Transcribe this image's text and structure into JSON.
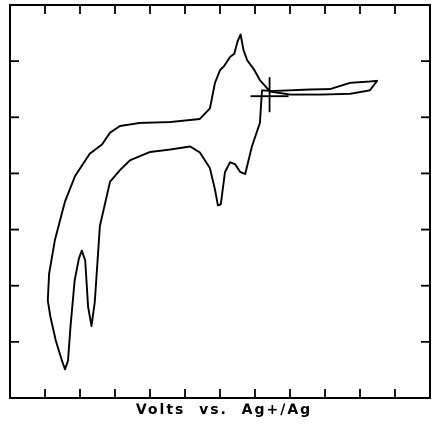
{
  "chart_data": {
    "type": "line",
    "title": "",
    "xlabel": "Volts  vs.  Ag+/Ag",
    "ylabel": "",
    "xlim": [
      0,
      100
    ],
    "ylim": [
      0,
      100
    ],
    "x_tick_count": 12,
    "y_tick_count": 7,
    "axis_tick_labels": "none printed",
    "grid": false,
    "legend": "none",
    "series": [
      {
        "points": [
          [
            60.0,
            78.3
          ],
          [
            62.4,
            78.1
          ],
          [
            66.7,
            78.3
          ],
          [
            71.4,
            78.5
          ],
          [
            76.2,
            78.6
          ],
          [
            81.0,
            80.2
          ],
          [
            85.5,
            80.5
          ],
          [
            87.4,
            80.7
          ],
          [
            85.7,
            78.3
          ],
          [
            81.0,
            77.4
          ],
          [
            73.8,
            77.2
          ],
          [
            66.7,
            77.2
          ],
          [
            61.9,
            78.0
          ],
          [
            59.5,
            80.9
          ],
          [
            58.1,
            83.6
          ],
          [
            56.5,
            85.9
          ],
          [
            55.6,
            88.5
          ],
          [
            54.9,
            92.5
          ],
          [
            54.2,
            90.8
          ],
          [
            53.4,
            87.6
          ],
          [
            52.4,
            86.8
          ],
          [
            51.0,
            84.5
          ],
          [
            50.0,
            83.4
          ],
          [
            48.8,
            80.2
          ],
          [
            47.6,
            73.7
          ],
          [
            45.2,
            71.0
          ],
          [
            38.1,
            70.2
          ],
          [
            30.9,
            70.0
          ],
          [
            26.2,
            69.2
          ],
          [
            23.8,
            67.5
          ],
          [
            21.9,
            64.5
          ],
          [
            19.0,
            62.2
          ],
          [
            15.5,
            56.5
          ],
          [
            13.1,
            50.0
          ],
          [
            10.7,
            40.2
          ],
          [
            9.3,
            31.6
          ],
          [
            9.0,
            24.8
          ],
          [
            9.6,
            20.8
          ],
          [
            10.9,
            14.6
          ],
          [
            12.4,
            9.4
          ],
          [
            13.1,
            7.3
          ],
          [
            13.8,
            9.5
          ],
          [
            14.4,
            18.2
          ],
          [
            15.4,
            30.0
          ],
          [
            16.4,
            35.5
          ],
          [
            17.1,
            37.5
          ],
          [
            17.9,
            35.0
          ],
          [
            18.6,
            23.2
          ],
          [
            19.4,
            18.3
          ],
          [
            20.2,
            24.5
          ],
          [
            21.4,
            43.8
          ],
          [
            23.8,
            55.0
          ],
          [
            26.2,
            58.0
          ],
          [
            28.6,
            60.5
          ],
          [
            33.3,
            62.6
          ],
          [
            38.1,
            63.2
          ],
          [
            42.9,
            64.0
          ],
          [
            45.2,
            62.5
          ],
          [
            47.6,
            58.5
          ],
          [
            48.8,
            53.0
          ],
          [
            49.5,
            49.0
          ],
          [
            50.2,
            49.3
          ],
          [
            51.2,
            57.5
          ],
          [
            52.4,
            60.0
          ],
          [
            53.6,
            59.5
          ],
          [
            54.8,
            57.5
          ],
          [
            56.0,
            57.0
          ],
          [
            57.6,
            64.0
          ],
          [
            59.5,
            70.0
          ],
          [
            60.0,
            78.3
          ]
        ]
      }
    ],
    "annotations": [
      "+ marker near the rest potential"
    ]
  }
}
